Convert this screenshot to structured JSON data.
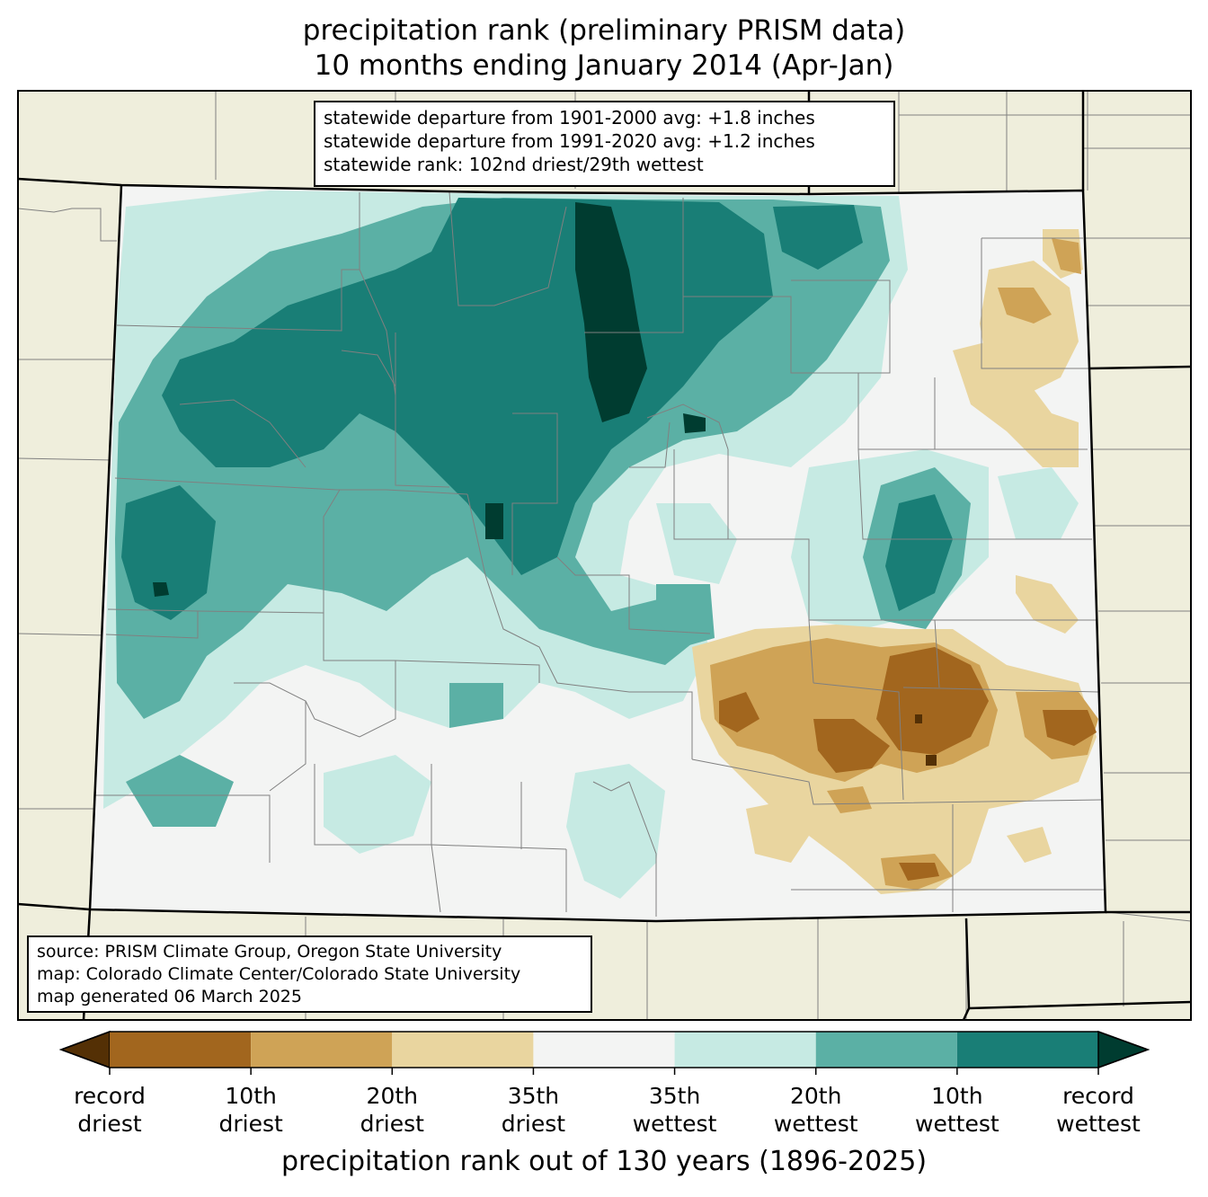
{
  "title": {
    "line1": "precipitation rank (preliminary PRISM data)",
    "line2": "10 months ending January 2014 (Apr-Jan)"
  },
  "stats": {
    "line1": "statewide departure from 1901-2000 avg: +1.8 inches",
    "line2": "statewide departure from 1991-2020 avg: +1.2 inches",
    "line3": "statewide rank: 102nd driest/29th wettest"
  },
  "source": {
    "line1": "source: PRISM Climate Group, Oregon State University",
    "line2": "map: Colorado Climate Center/Colorado State University",
    "line3": "map generated 06 March 2025"
  },
  "colorbar": {
    "title": "precipitation rank out of 130 years (1896-2025)",
    "colors": {
      "record_driest": "#543005",
      "c1": "#a2661e",
      "c2": "#cfa356",
      "c3": "#e9d59f",
      "c4": "#f3f4f3",
      "c5": "#c6eae3",
      "c6": "#5bb0a5",
      "c7": "#197e76",
      "record_wettest": "#003c30"
    },
    "labels": [
      {
        "top": "record",
        "bottom": "driest"
      },
      {
        "top": "10th",
        "bottom": "driest"
      },
      {
        "top": "20th",
        "bottom": "driest"
      },
      {
        "top": "35th",
        "bottom": "driest"
      },
      {
        "top": "35th",
        "bottom": "wettest"
      },
      {
        "top": "20th",
        "bottom": "wettest"
      },
      {
        "top": "10th",
        "bottom": "wettest"
      },
      {
        "top": "record",
        "bottom": "wettest"
      }
    ]
  },
  "map_colors": {
    "land": "#efeedc",
    "state_border": "#000000",
    "county_border": "#808080"
  }
}
